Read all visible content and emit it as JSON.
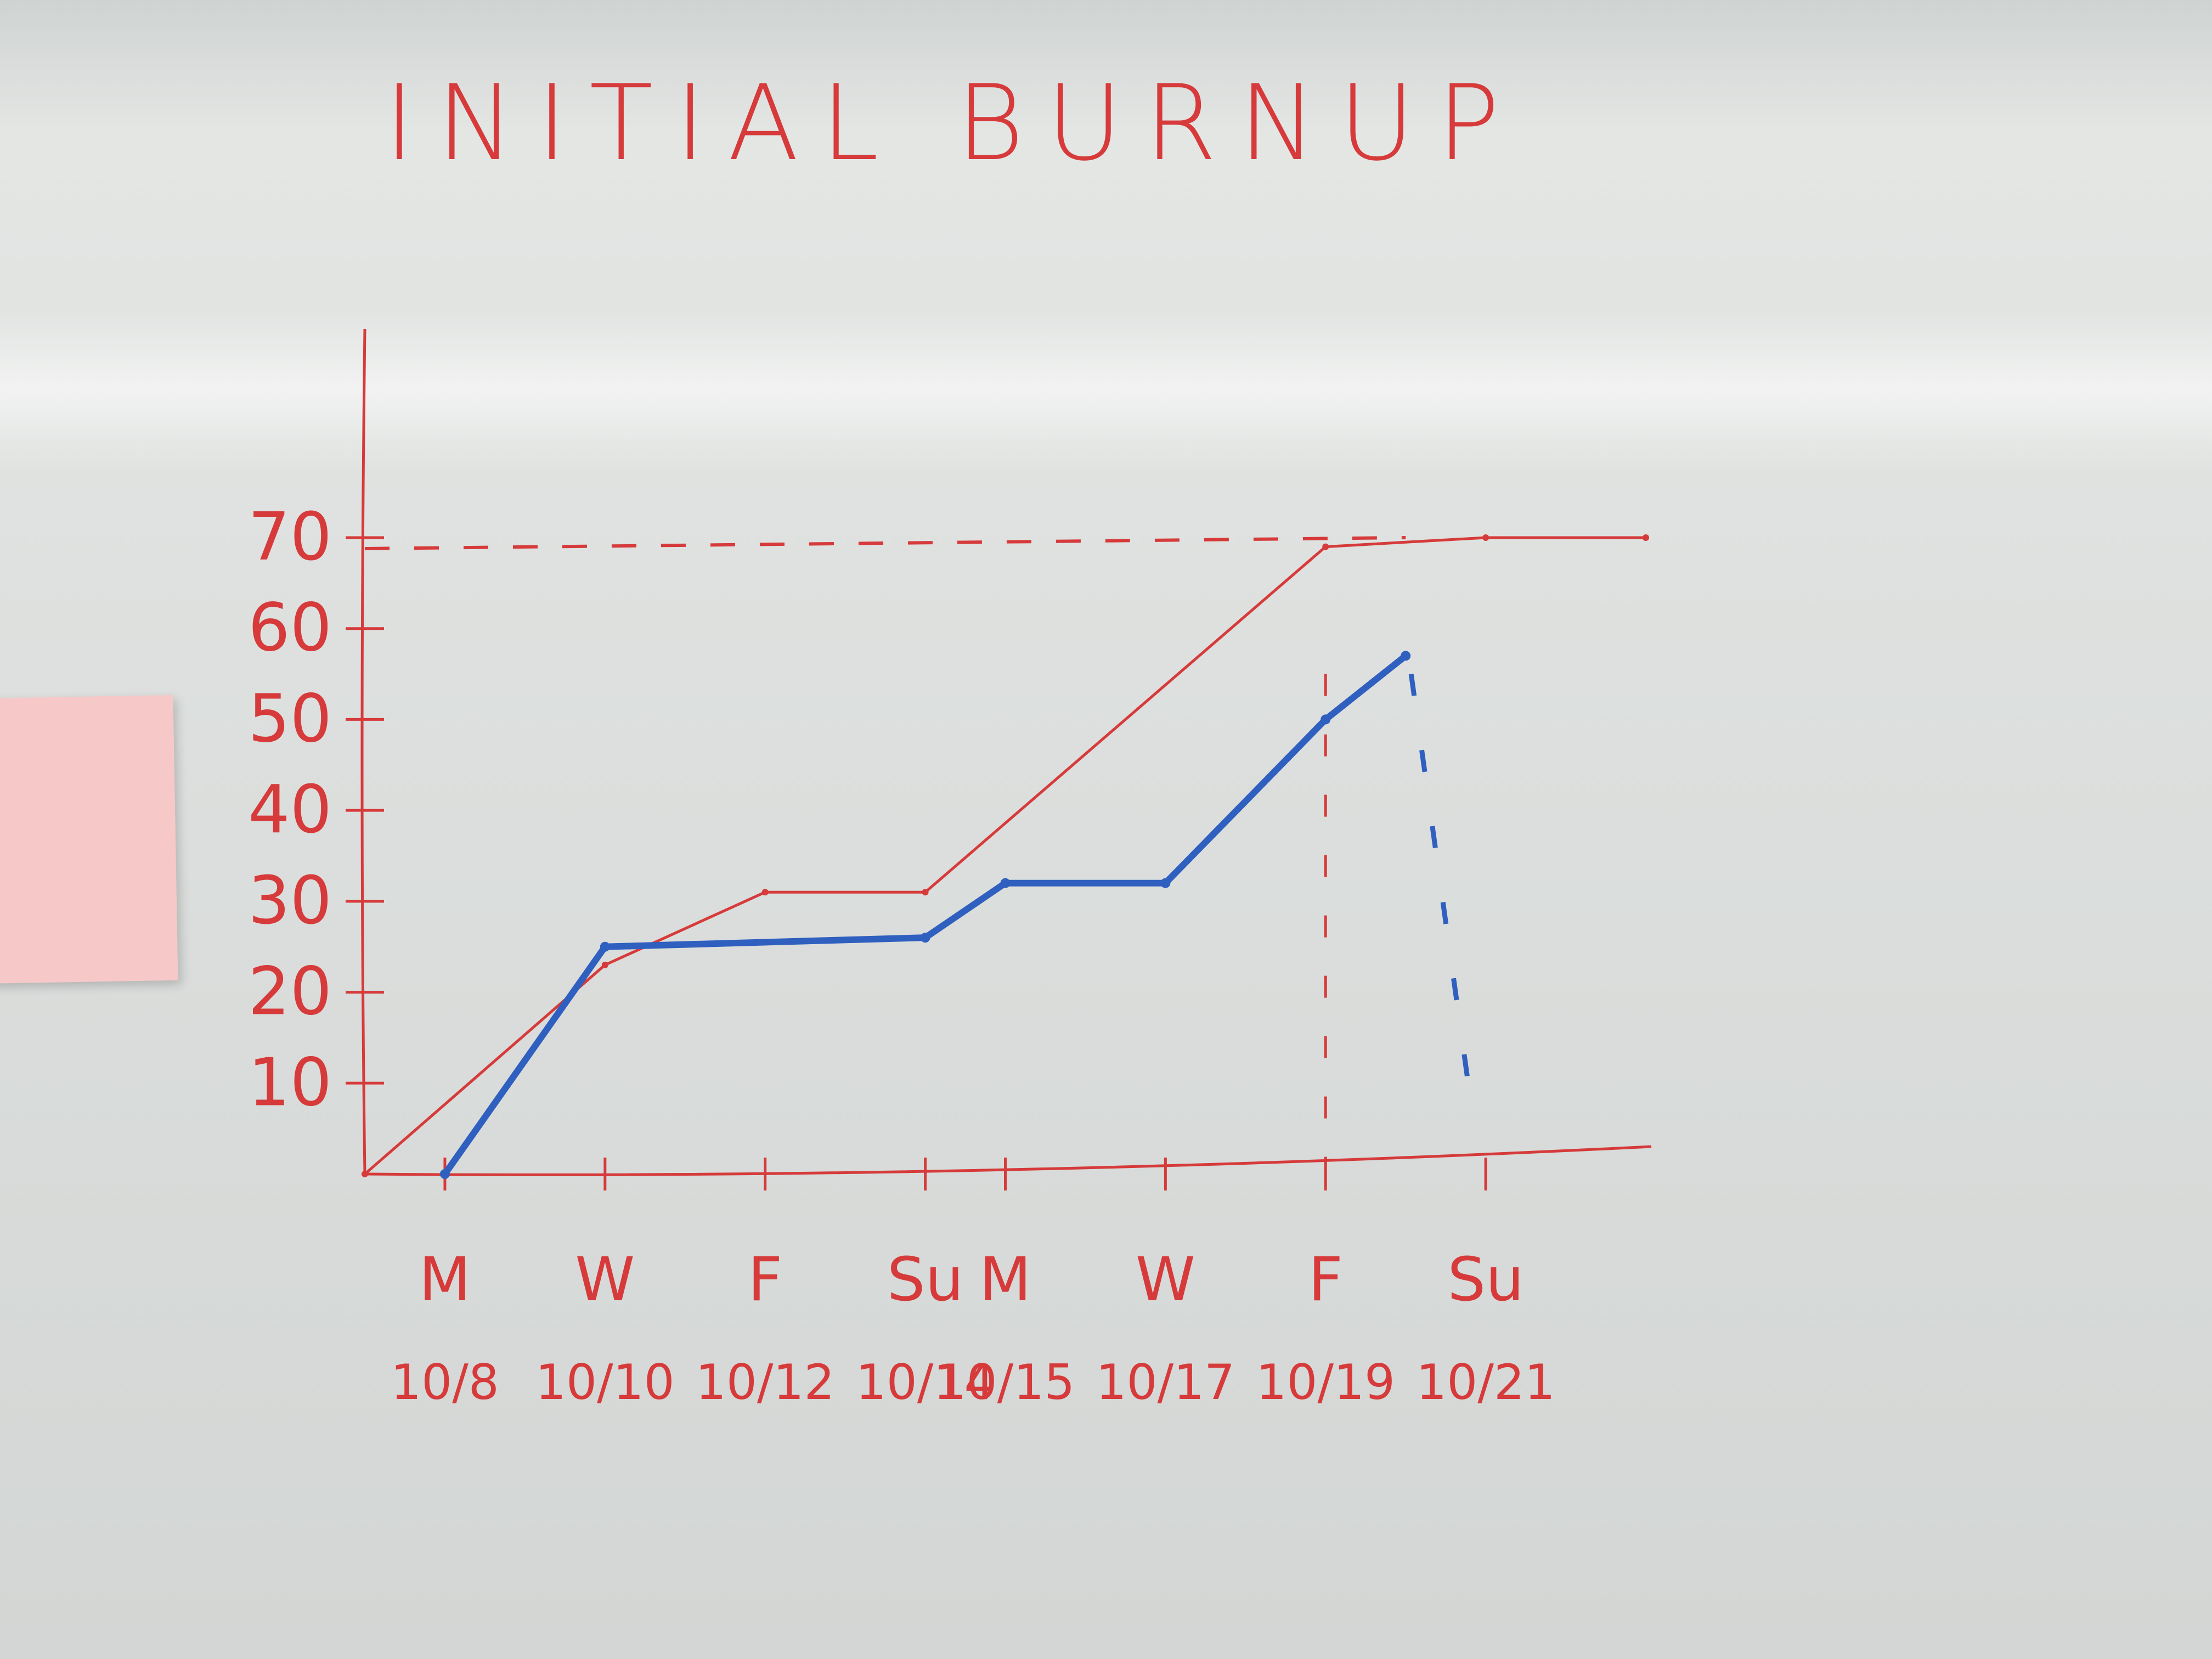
{
  "chart_data": {
    "type": "line",
    "title": "INITIAL BURNUP",
    "xlabel": "",
    "ylabel": "",
    "x_categories": [
      {
        "day": "M",
        "date": "10/8"
      },
      {
        "day": "W",
        "date": "10/10"
      },
      {
        "day": "F",
        "date": "10/12"
      },
      {
        "day": "Su",
        "date": "10/14"
      },
      {
        "day": "M",
        "date": "10/15"
      },
      {
        "day": "W",
        "date": "10/17"
      },
      {
        "day": "F",
        "date": "10/19"
      },
      {
        "day": "Su",
        "date": "10/21"
      }
    ],
    "y_ticks": [
      "10",
      "20",
      "30",
      "40",
      "50",
      "60",
      "70"
    ],
    "ylim": [
      0,
      70
    ],
    "scope_line": {
      "value": 70,
      "style": "dashed"
    },
    "series": [
      {
        "color": "#d63a3a",
        "points": [
          {
            "x": "10/7",
            "y": 0
          },
          {
            "x": "10/10",
            "y": 23
          },
          {
            "x": "10/12",
            "y": 31
          },
          {
            "x": "10/14",
            "y": 31
          },
          {
            "x": "10/19",
            "y": 69
          },
          {
            "x": "10/21",
            "y": 70
          },
          {
            "x": "10/23",
            "y": 70
          }
        ]
      },
      {
        "color": "#2f5fbf",
        "points": [
          {
            "x": "10/8",
            "y": 0
          },
          {
            "x": "10/10",
            "y": 25
          },
          {
            "x": "10/14",
            "y": 26
          },
          {
            "x": "10/15",
            "y": 32
          },
          {
            "x": "10/17",
            "y": 32
          },
          {
            "x": "10/19",
            "y": 50
          },
          {
            "x": "10/20",
            "y": 57
          }
        ]
      }
    ],
    "colors": {
      "marker_red": "#d63a3a",
      "marker_blue": "#2f5fbf"
    }
  }
}
